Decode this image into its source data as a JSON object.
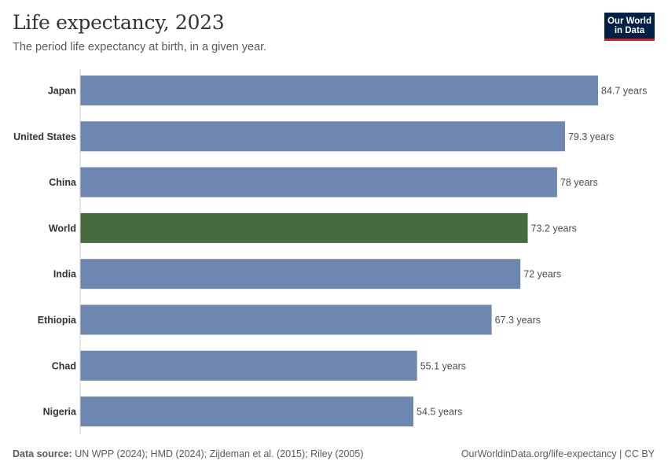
{
  "header": {
    "title": "Life expectancy, 2023",
    "subtitle": "The period life expectancy at birth, in a given year."
  },
  "logo": {
    "line1": "Our World",
    "line2": "in Data"
  },
  "footer": {
    "source_label": "Data source:",
    "source_text": "UN WPP (2024); HMD (2024); Zijdeman et al. (2015); Riley (2005)",
    "url_text": "OurWorldinData.org/life-expectancy | CC BY"
  },
  "colors": {
    "bar": "#6e87b0",
    "highlight": "#466b3f",
    "text": "#333333",
    "value_text": "#4d4d4d",
    "axis": "#cccccc"
  },
  "chart_data": {
    "type": "bar",
    "orientation": "horizontal",
    "title": "Life expectancy, 2023",
    "subtitle": "The period life expectancy at birth, in a given year.",
    "unit": "years",
    "categories": [
      "Japan",
      "United States",
      "China",
      "World",
      "India",
      "Ethiopia",
      "Chad",
      "Nigeria"
    ],
    "values": [
      84.7,
      79.3,
      78,
      73.2,
      72,
      67.3,
      55.1,
      54.5
    ],
    "value_labels": [
      "84.7 years",
      "79.3 years",
      "78 years",
      "73.2 years",
      "72 years",
      "67.3 years",
      "55.1 years",
      "54.5 years"
    ],
    "highlighted": "World",
    "xlim": [
      0,
      84.7
    ],
    "grid": false
  }
}
